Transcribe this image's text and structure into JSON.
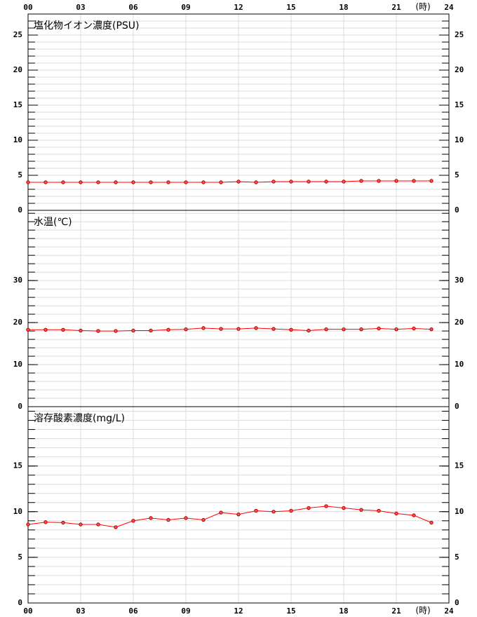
{
  "x_axis": {
    "xlim": [
      0,
      24
    ],
    "xticks": [
      {
        "value": 0,
        "label": "00"
      },
      {
        "value": 3,
        "label": "03"
      },
      {
        "value": 6,
        "label": "06"
      },
      {
        "value": 9,
        "label": "09"
      },
      12,
      15,
      18,
      21,
      24
    ],
    "unit": "(時)"
  },
  "chart_data": [
    {
      "type": "line",
      "title": "塩化物イオン濃度(PSU)",
      "x": [
        0,
        1,
        2,
        3,
        4,
        5,
        6,
        7,
        8,
        9,
        10,
        11,
        12,
        13,
        14,
        15,
        16,
        17,
        18,
        19,
        20,
        21,
        22,
        23
      ],
      "series": [
        {
          "color": "#ff0000",
          "values": [
            4.0,
            4.0,
            4.0,
            4.0,
            4.0,
            4.0,
            4.0,
            4.0,
            4.0,
            4.0,
            4.0,
            4.0,
            4.1,
            4.0,
            4.1,
            4.1,
            4.1,
            4.1,
            4.1,
            4.2,
            4.2,
            4.2,
            4.2,
            4.2
          ]
        }
      ],
      "ylim": [
        0,
        28
      ],
      "yticks": [
        0,
        5,
        10,
        15,
        20,
        25
      ],
      "minor_grid_step": 1
    },
    {
      "type": "line",
      "title": "水温(℃)",
      "x": [
        0,
        1,
        2,
        3,
        4,
        5,
        6,
        7,
        8,
        9,
        10,
        11,
        12,
        13,
        14,
        15,
        16,
        17,
        18,
        19,
        20,
        21,
        22,
        23
      ],
      "series": [
        {
          "color": "#ff0000",
          "values": [
            18.3,
            18.3,
            18.3,
            18.1,
            18.0,
            18.0,
            18.1,
            18.1,
            18.3,
            18.4,
            18.7,
            18.5,
            18.5,
            18.7,
            18.5,
            18.3,
            18.1,
            18.4,
            18.4,
            18.4,
            18.6,
            18.4,
            18.6,
            18.4
          ]
        }
      ],
      "ylim": [
        0,
        46.7
      ],
      "yticks": [
        0,
        10,
        20,
        30
      ],
      "minor_grid_step": 2
    },
    {
      "type": "line",
      "title": "溶存酸素濃度(mg/L)",
      "x": [
        0,
        1,
        2,
        3,
        4,
        5,
        6,
        7,
        8,
        9,
        10,
        11,
        12,
        13,
        14,
        15,
        16,
        17,
        18,
        19,
        20,
        21,
        22,
        23
      ],
      "series": [
        {
          "color": "#ff0000",
          "values": [
            8.6,
            8.85,
            8.8,
            8.6,
            8.6,
            8.3,
            9.0,
            9.3,
            9.1,
            9.3,
            9.1,
            9.9,
            9.7,
            10.1,
            10.0,
            10.1,
            10.4,
            10.6,
            10.4,
            10.2,
            10.1,
            9.8,
            9.6,
            8.8
          ]
        }
      ],
      "ylim": [
        0,
        21.5
      ],
      "yticks": [
        0,
        5,
        10,
        15
      ],
      "minor_grid_step": 1
    }
  ]
}
